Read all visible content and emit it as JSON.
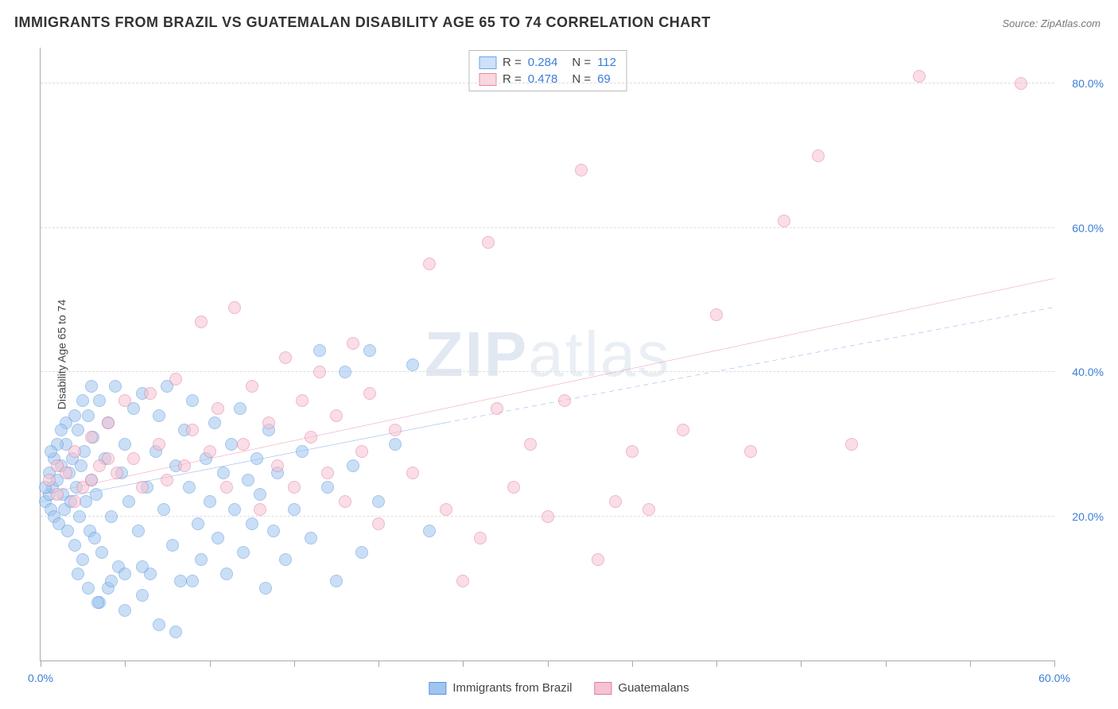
{
  "title": "IMMIGRANTS FROM BRAZIL VS GUATEMALAN DISABILITY AGE 65 TO 74 CORRELATION CHART",
  "source": "Source: ZipAtlas.com",
  "y_axis_label": "Disability Age 65 to 74",
  "watermark": {
    "part1": "ZIP",
    "part2": "atlas"
  },
  "chart": {
    "type": "scatter",
    "background_color": "#ffffff",
    "grid_color": "#dddddd",
    "axis_color": "#aaaaaa",
    "x_domain": [
      0,
      60
    ],
    "y_domain": [
      0,
      85
    ],
    "y_gridlines": [
      20,
      40,
      60,
      80
    ],
    "y_tick_labels": [
      "20.0%",
      "40.0%",
      "60.0%",
      "80.0%"
    ],
    "x_ticks": [
      0,
      5,
      10,
      15,
      20,
      25,
      30,
      35,
      40,
      45,
      50,
      55,
      60
    ],
    "x_tick_labels": {
      "0": "0.0%",
      "60": "60.0%"
    },
    "label_color": "#3b7dd8",
    "label_fontsize": 14,
    "axis_label_color": "#444444",
    "axis_label_fontsize": 14,
    "title_fontsize": 18,
    "title_color": "#333333",
    "point_radius": 8,
    "point_opacity": 0.55,
    "stats_legend": [
      {
        "r": "0.284",
        "n": "112",
        "swatch_fill": "#cde1f8",
        "swatch_border": "#6aa6e8"
      },
      {
        "r": "0.478",
        "n": "69",
        "swatch_fill": "#fbd7e0",
        "swatch_border": "#e88aa6"
      }
    ],
    "series": [
      {
        "name": "Immigrants from Brazil",
        "fill_color": "#9fc5f0",
        "border_color": "#5b96db",
        "trend": {
          "color": "#2b6fd6",
          "width": 2.5,
          "x1": 0,
          "y1": 22,
          "x2": 24,
          "y2": 33,
          "dash_x2": 60,
          "dash_y2": 49,
          "dash": "6,5"
        },
        "points": [
          [
            0.3,
            22
          ],
          [
            0.5,
            23
          ],
          [
            0.6,
            21
          ],
          [
            0.7,
            24
          ],
          [
            0.8,
            20
          ],
          [
            1.0,
            25
          ],
          [
            1.1,
            19
          ],
          [
            1.2,
            27
          ],
          [
            1.3,
            23
          ],
          [
            1.4,
            21
          ],
          [
            1.5,
            30
          ],
          [
            1.6,
            18
          ],
          [
            1.7,
            26
          ],
          [
            1.8,
            22
          ],
          [
            1.9,
            28
          ],
          [
            2.0,
            16
          ],
          [
            2.1,
            24
          ],
          [
            2.2,
            32
          ],
          [
            2.3,
            20
          ],
          [
            2.4,
            27
          ],
          [
            2.5,
            14
          ],
          [
            2.6,
            29
          ],
          [
            2.7,
            22
          ],
          [
            2.8,
            34
          ],
          [
            2.9,
            18
          ],
          [
            3.0,
            25
          ],
          [
            3.1,
            31
          ],
          [
            3.2,
            17
          ],
          [
            3.3,
            23
          ],
          [
            3.5,
            36
          ],
          [
            3.6,
            15
          ],
          [
            3.8,
            28
          ],
          [
            4.0,
            33
          ],
          [
            4.2,
            20
          ],
          [
            4.4,
            38
          ],
          [
            4.6,
            13
          ],
          [
            4.8,
            26
          ],
          [
            5.0,
            30
          ],
          [
            5.2,
            22
          ],
          [
            5.5,
            35
          ],
          [
            5.8,
            18
          ],
          [
            6.0,
            37
          ],
          [
            6.3,
            24
          ],
          [
            6.5,
            12
          ],
          [
            6.8,
            29
          ],
          [
            7.0,
            34
          ],
          [
            7.3,
            21
          ],
          [
            7.5,
            38
          ],
          [
            7.8,
            16
          ],
          [
            8.0,
            27
          ],
          [
            8.3,
            11
          ],
          [
            8.5,
            32
          ],
          [
            8.8,
            24
          ],
          [
            9.0,
            36
          ],
          [
            9.3,
            19
          ],
          [
            9.5,
            14
          ],
          [
            9.8,
            28
          ],
          [
            10.0,
            22
          ],
          [
            10.3,
            33
          ],
          [
            10.5,
            17
          ],
          [
            10.8,
            26
          ],
          [
            11.0,
            12
          ],
          [
            11.3,
            30
          ],
          [
            11.5,
            21
          ],
          [
            11.8,
            35
          ],
          [
            12.0,
            15
          ],
          [
            12.3,
            25
          ],
          [
            12.5,
            19
          ],
          [
            12.8,
            28
          ],
          [
            13.0,
            23
          ],
          [
            13.3,
            10
          ],
          [
            13.5,
            32
          ],
          [
            13.8,
            18
          ],
          [
            14.0,
            26
          ],
          [
            14.5,
            14
          ],
          [
            15.0,
            21
          ],
          [
            15.5,
            29
          ],
          [
            16.0,
            17
          ],
          [
            16.5,
            43
          ],
          [
            17.0,
            24
          ],
          [
            17.5,
            11
          ],
          [
            18.0,
            40
          ],
          [
            18.5,
            27
          ],
          [
            19.0,
            15
          ],
          [
            19.5,
            43
          ],
          [
            20.0,
            22
          ],
          [
            21.0,
            30
          ],
          [
            22.0,
            41
          ],
          [
            23.0,
            18
          ],
          [
            7.0,
            5
          ],
          [
            3.5,
            8
          ],
          [
            4.0,
            10
          ],
          [
            5.0,
            12
          ],
          [
            6.0,
            9
          ],
          [
            2.0,
            34
          ],
          [
            2.5,
            36
          ],
          [
            3.0,
            38
          ],
          [
            1.5,
            33
          ],
          [
            1.0,
            30
          ],
          [
            0.8,
            28
          ],
          [
            1.2,
            32
          ],
          [
            0.5,
            26
          ],
          [
            0.3,
            24
          ],
          [
            0.6,
            29
          ],
          [
            2.2,
            12
          ],
          [
            2.8,
            10
          ],
          [
            3.4,
            8
          ],
          [
            4.2,
            11
          ],
          [
            5.0,
            7
          ],
          [
            6.0,
            13
          ],
          [
            8.0,
            4
          ],
          [
            9.0,
            11
          ]
        ]
      },
      {
        "name": "Guatemalans",
        "fill_color": "#f6c3d2",
        "border_color": "#e37ca0",
        "trend": {
          "color": "#e04b7a",
          "width": 2.5,
          "x1": 0,
          "y1": 23,
          "x2": 60,
          "y2": 53
        },
        "points": [
          [
            0.5,
            25
          ],
          [
            1.0,
            27
          ],
          [
            1.5,
            26
          ],
          [
            2.0,
            29
          ],
          [
            2.5,
            24
          ],
          [
            3.0,
            31
          ],
          [
            3.5,
            27
          ],
          [
            4.0,
            33
          ],
          [
            4.5,
            26
          ],
          [
            5.0,
            36
          ],
          [
            5.5,
            28
          ],
          [
            6.0,
            24
          ],
          [
            6.5,
            37
          ],
          [
            7.0,
            30
          ],
          [
            7.5,
            25
          ],
          [
            8.0,
            39
          ],
          [
            8.5,
            27
          ],
          [
            9.0,
            32
          ],
          [
            9.5,
            47
          ],
          [
            10.0,
            29
          ],
          [
            10.5,
            35
          ],
          [
            11.0,
            24
          ],
          [
            11.5,
            49
          ],
          [
            12.0,
            30
          ],
          [
            12.5,
            38
          ],
          [
            13.0,
            21
          ],
          [
            13.5,
            33
          ],
          [
            14.0,
            27
          ],
          [
            14.5,
            42
          ],
          [
            15.0,
            24
          ],
          [
            15.5,
            36
          ],
          [
            16.0,
            31
          ],
          [
            16.5,
            40
          ],
          [
            17.0,
            26
          ],
          [
            17.5,
            34
          ],
          [
            18.0,
            22
          ],
          [
            18.5,
            44
          ],
          [
            19.0,
            29
          ],
          [
            19.5,
            37
          ],
          [
            20.0,
            19
          ],
          [
            21.0,
            32
          ],
          [
            22.0,
            26
          ],
          [
            23.0,
            55
          ],
          [
            24.0,
            21
          ],
          [
            25.0,
            11
          ],
          [
            26.0,
            17
          ],
          [
            27.0,
            35
          ],
          [
            26.5,
            58
          ],
          [
            28.0,
            24
          ],
          [
            29.0,
            30
          ],
          [
            30.0,
            20
          ],
          [
            31.0,
            36
          ],
          [
            32.0,
            68
          ],
          [
            33.0,
            14
          ],
          [
            34.0,
            22
          ],
          [
            35.0,
            29
          ],
          [
            36.0,
            21
          ],
          [
            38.0,
            32
          ],
          [
            40.0,
            48
          ],
          [
            42.0,
            29
          ],
          [
            44.0,
            61
          ],
          [
            46.0,
            70
          ],
          [
            48.0,
            30
          ],
          [
            52.0,
            81
          ],
          [
            1.0,
            23
          ],
          [
            2.0,
            22
          ],
          [
            3.0,
            25
          ],
          [
            4.0,
            28
          ],
          [
            58.0,
            80
          ]
        ]
      }
    ]
  }
}
